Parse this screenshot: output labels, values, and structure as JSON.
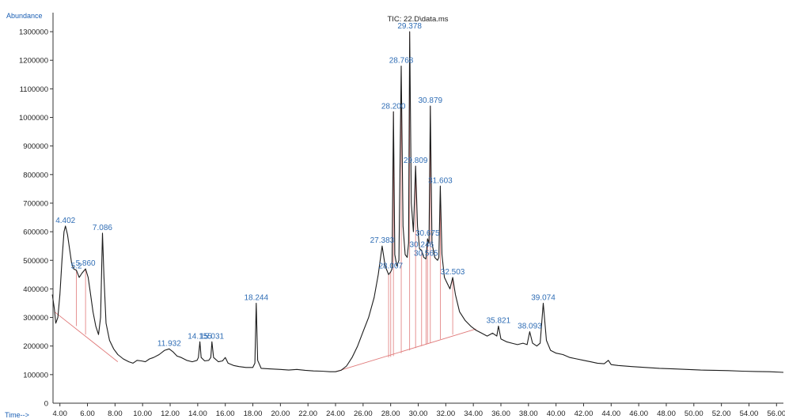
{
  "chart_data": {
    "type": "line",
    "title": "TIC: 22.D\\data.ms",
    "ylabel": "Abundance",
    "xlabel": "Time-->",
    "xlim": [
      3.5,
      56.5
    ],
    "ylim": [
      0,
      1350000
    ],
    "x_ticks": [
      "4.00",
      "6.00",
      "8.00",
      "10.00",
      "12.00",
      "14.00",
      "16.00",
      "18.00",
      "20.00",
      "22.00",
      "24.00",
      "26.00",
      "28.00",
      "30.00",
      "32.00",
      "34.00",
      "36.00",
      "38.00",
      "40.00",
      "42.00",
      "44.00",
      "46.00",
      "48.00",
      "50.00",
      "52.00",
      "54.00",
      "56.00"
    ],
    "y_ticks": [
      "100000",
      "200000",
      "300000",
      "400000",
      "500000",
      "600000",
      "700000",
      "800000",
      "900000",
      "1000000",
      "1100000",
      "1200000",
      "1300000"
    ],
    "y_zero_label": "0",
    "colors": {
      "trace": "#1c1c1c",
      "integration": "#e07a7a",
      "labels": "#2f6db5",
      "axis_titles": "#1a5fb4"
    },
    "peak_labels": [
      {
        "label": "4.402",
        "x": 4.402,
        "y": 620000
      },
      {
        "label": "5.2",
        "x": 5.2,
        "y": 460000
      },
      {
        "label": "5.860",
        "x": 5.86,
        "y": 470000
      },
      {
        "label": "7.086",
        "x": 7.086,
        "y": 595000
      },
      {
        "label": "11.932",
        "x": 11.932,
        "y": 190000
      },
      {
        "label": "14.155",
        "x": 14.155,
        "y": 215000
      },
      {
        "label": "15.031",
        "x": 15.031,
        "y": 215000
      },
      {
        "label": "18.244",
        "x": 18.244,
        "y": 350000
      },
      {
        "label": "27.383",
        "x": 27.383,
        "y": 550000
      },
      {
        "label": "28.007",
        "x": 28.007,
        "y": 460000
      },
      {
        "label": "28.200",
        "x": 28.2,
        "y": 1020000
      },
      {
        "label": "28.768",
        "x": 28.768,
        "y": 1180000
      },
      {
        "label": "29.378",
        "x": 29.378,
        "y": 1300000
      },
      {
        "label": "29.809",
        "x": 29.809,
        "y": 830000
      },
      {
        "label": "30.879",
        "x": 30.879,
        "y": 1040000
      },
      {
        "label": "30.675",
        "x": 30.675,
        "y": 575000
      },
      {
        "label": "30.246",
        "x": 30.246,
        "y": 535000
      },
      {
        "label": "30.565",
        "x": 30.565,
        "y": 505000
      },
      {
        "label": "31.603",
        "x": 31.603,
        "y": 760000
      },
      {
        "label": "32.503",
        "x": 32.503,
        "y": 440000
      },
      {
        "label": "35.821",
        "x": 35.821,
        "y": 270000
      },
      {
        "label": "38.093",
        "x": 38.093,
        "y": 250000
      },
      {
        "label": "39.074",
        "x": 39.074,
        "y": 350000
      }
    ],
    "series": [
      {
        "points": [
          [
            3.45,
            380000
          ],
          [
            3.6,
            330000
          ],
          [
            3.7,
            280000
          ],
          [
            3.85,
            300000
          ],
          [
            4.0,
            380000
          ],
          [
            4.15,
            500000
          ],
          [
            4.3,
            600000
          ],
          [
            4.402,
            620000
          ],
          [
            4.55,
            590000
          ],
          [
            4.7,
            540000
          ],
          [
            4.85,
            490000
          ],
          [
            5.0,
            470000
          ],
          [
            5.2,
            465000
          ],
          [
            5.4,
            440000
          ],
          [
            5.6,
            455000
          ],
          [
            5.86,
            470000
          ],
          [
            6.05,
            440000
          ],
          [
            6.2,
            390000
          ],
          [
            6.4,
            320000
          ],
          [
            6.6,
            270000
          ],
          [
            6.8,
            240000
          ],
          [
            6.95,
            300000
          ],
          [
            7.086,
            595000
          ],
          [
            7.2,
            440000
          ],
          [
            7.35,
            280000
          ],
          [
            7.6,
            220000
          ],
          [
            7.9,
            190000
          ],
          [
            8.2,
            170000
          ],
          [
            8.6,
            155000
          ],
          [
            9.0,
            145000
          ],
          [
            9.3,
            140000
          ],
          [
            9.6,
            150000
          ],
          [
            9.9,
            148000
          ],
          [
            10.2,
            145000
          ],
          [
            10.5,
            155000
          ],
          [
            10.8,
            160000
          ],
          [
            11.2,
            170000
          ],
          [
            11.6,
            185000
          ],
          [
            11.932,
            190000
          ],
          [
            12.2,
            180000
          ],
          [
            12.5,
            165000
          ],
          [
            12.8,
            160000
          ],
          [
            13.2,
            150000
          ],
          [
            13.6,
            145000
          ],
          [
            13.95,
            150000
          ],
          [
            14.05,
            160000
          ],
          [
            14.155,
            215000
          ],
          [
            14.25,
            160000
          ],
          [
            14.5,
            148000
          ],
          [
            14.8,
            150000
          ],
          [
            14.95,
            160000
          ],
          [
            15.031,
            215000
          ],
          [
            15.15,
            160000
          ],
          [
            15.5,
            145000
          ],
          [
            15.8,
            148000
          ],
          [
            16.0,
            160000
          ],
          [
            16.2,
            140000
          ],
          [
            16.6,
            132000
          ],
          [
            17.0,
            128000
          ],
          [
            17.5,
            125000
          ],
          [
            18.0,
            125000
          ],
          [
            18.15,
            140000
          ],
          [
            18.244,
            350000
          ],
          [
            18.35,
            150000
          ],
          [
            18.6,
            122000
          ],
          [
            19.2,
            120000
          ],
          [
            20.0,
            118000
          ],
          [
            20.6,
            116000
          ],
          [
            21.2,
            118000
          ],
          [
            21.8,
            115000
          ],
          [
            22.4,
            113000
          ],
          [
            23.0,
            112000
          ],
          [
            23.6,
            110000
          ],
          [
            24.0,
            110000
          ],
          [
            24.4,
            115000
          ],
          [
            24.8,
            130000
          ],
          [
            25.2,
            160000
          ],
          [
            25.6,
            200000
          ],
          [
            26.0,
            250000
          ],
          [
            26.4,
            300000
          ],
          [
            26.8,
            370000
          ],
          [
            27.1,
            450000
          ],
          [
            27.383,
            550000
          ],
          [
            27.6,
            480000
          ],
          [
            27.85,
            450000
          ],
          [
            28.007,
            460000
          ],
          [
            28.1,
            470000
          ],
          [
            28.2,
            1020000
          ],
          [
            28.3,
            520000
          ],
          [
            28.45,
            480000
          ],
          [
            28.6,
            500000
          ],
          [
            28.768,
            1180000
          ],
          [
            28.9,
            620000
          ],
          [
            29.05,
            520000
          ],
          [
            29.2,
            510000
          ],
          [
            29.3,
            560000
          ],
          [
            29.378,
            1300000
          ],
          [
            29.5,
            700000
          ],
          [
            29.65,
            600000
          ],
          [
            29.809,
            830000
          ],
          [
            29.95,
            620000
          ],
          [
            30.1,
            540000
          ],
          [
            30.246,
            535000
          ],
          [
            30.4,
            510000
          ],
          [
            30.565,
            505000
          ],
          [
            30.675,
            575000
          ],
          [
            30.78,
            560000
          ],
          [
            30.879,
            1040000
          ],
          [
            31.0,
            560000
          ],
          [
            31.2,
            510000
          ],
          [
            31.4,
            500000
          ],
          [
            31.5,
            510000
          ],
          [
            31.603,
            760000
          ],
          [
            31.72,
            520000
          ],
          [
            31.9,
            440000
          ],
          [
            32.1,
            420000
          ],
          [
            32.3,
            400000
          ],
          [
            32.503,
            440000
          ],
          [
            32.7,
            380000
          ],
          [
            33.0,
            320000
          ],
          [
            33.4,
            290000
          ],
          [
            33.8,
            270000
          ],
          [
            34.2,
            255000
          ],
          [
            34.6,
            245000
          ],
          [
            35.0,
            235000
          ],
          [
            35.4,
            245000
          ],
          [
            35.7,
            235000
          ],
          [
            35.821,
            270000
          ],
          [
            36.0,
            225000
          ],
          [
            36.4,
            215000
          ],
          [
            36.8,
            210000
          ],
          [
            37.2,
            205000
          ],
          [
            37.6,
            210000
          ],
          [
            37.9,
            205000
          ],
          [
            38.093,
            250000
          ],
          [
            38.3,
            210000
          ],
          [
            38.6,
            200000
          ],
          [
            38.85,
            210000
          ],
          [
            39.074,
            350000
          ],
          [
            39.3,
            220000
          ],
          [
            39.6,
            185000
          ],
          [
            40.0,
            175000
          ],
          [
            40.5,
            170000
          ],
          [
            41.0,
            160000
          ],
          [
            41.5,
            155000
          ],
          [
            42.0,
            150000
          ],
          [
            42.5,
            145000
          ],
          [
            43.0,
            140000
          ],
          [
            43.5,
            138000
          ],
          [
            43.8,
            150000
          ],
          [
            44.0,
            135000
          ],
          [
            44.5,
            132000
          ],
          [
            45.5,
            128000
          ],
          [
            46.5,
            125000
          ],
          [
            47.5,
            122000
          ],
          [
            48.5,
            120000
          ],
          [
            49.5,
            118000
          ],
          [
            50.5,
            116000
          ],
          [
            51.5,
            115000
          ],
          [
            52.5,
            114000
          ],
          [
            53.5,
            112000
          ],
          [
            54.5,
            111000
          ],
          [
            55.5,
            110000
          ],
          [
            56.5,
            108000
          ]
        ]
      }
    ],
    "integration_baselines": [
      [
        [
          3.6,
          320000
        ],
        [
          8.2,
          145000
        ]
      ],
      [
        [
          24.0,
          110000
        ],
        [
          34.2,
          260000
        ]
      ]
    ],
    "integration_drops": [
      [
        5.2,
        465000,
        270000
      ],
      [
        5.86,
        470000,
        240000
      ],
      [
        27.85,
        450000,
        160000
      ],
      [
        28.007,
        460000,
        162000
      ],
      [
        28.2,
        1020000,
        165000
      ],
      [
        28.768,
        1180000,
        175000
      ],
      [
        29.378,
        1300000,
        185000
      ],
      [
        29.809,
        830000,
        193000
      ],
      [
        30.246,
        535000,
        200000
      ],
      [
        30.565,
        505000,
        205000
      ],
      [
        30.675,
        575000,
        207000
      ],
      [
        30.879,
        1040000,
        211000
      ],
      [
        31.603,
        760000,
        224000
      ],
      [
        32.503,
        440000,
        240000
      ]
    ]
  }
}
